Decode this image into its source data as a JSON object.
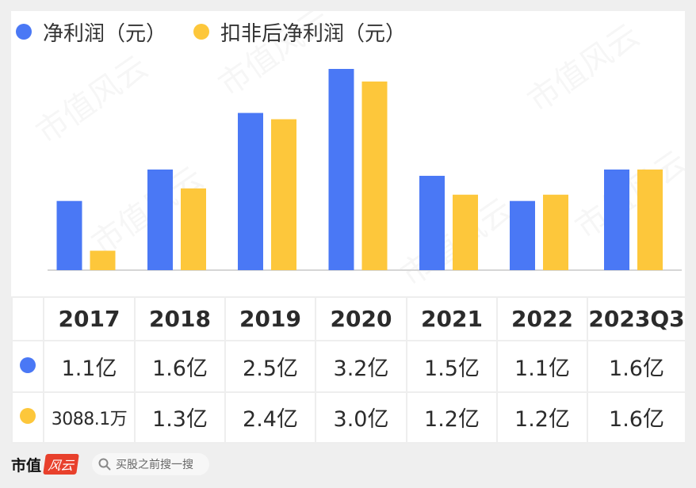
{
  "colors": {
    "net_profit": "#4a78f5",
    "deducted_profit": "#fdc73b",
    "axis": "#d6d6d6"
  },
  "legend": {
    "series1": "净利润（元）",
    "series2": "扣非后净利润（元）"
  },
  "chart_data": {
    "type": "bar",
    "categories": [
      "2017",
      "2018",
      "2019",
      "2020",
      "2021",
      "2022",
      "2023Q3"
    ],
    "series": [
      {
        "name": "净利润（元）",
        "values": [
          1.1,
          1.6,
          2.5,
          3.2,
          1.5,
          1.1,
          1.6
        ],
        "labels": [
          "1.1亿",
          "1.6亿",
          "2.5亿",
          "3.2亿",
          "1.5亿",
          "1.1亿",
          "1.6亿"
        ]
      },
      {
        "name": "扣非后净利润（元）",
        "values": [
          0.30881,
          1.3,
          2.4,
          3.0,
          1.2,
          1.2,
          1.6
        ],
        "labels": [
          "3088.1万",
          "1.3亿",
          "2.4亿",
          "3.0亿",
          "1.2亿",
          "1.2亿",
          "1.6亿"
        ]
      }
    ],
    "xlabel": "",
    "ylabel": "",
    "grid": false
  },
  "footer": {
    "brand": "市值",
    "brand_logo": "风云",
    "search_placeholder": "买股之前搜一搜"
  },
  "watermark": "市值风云"
}
